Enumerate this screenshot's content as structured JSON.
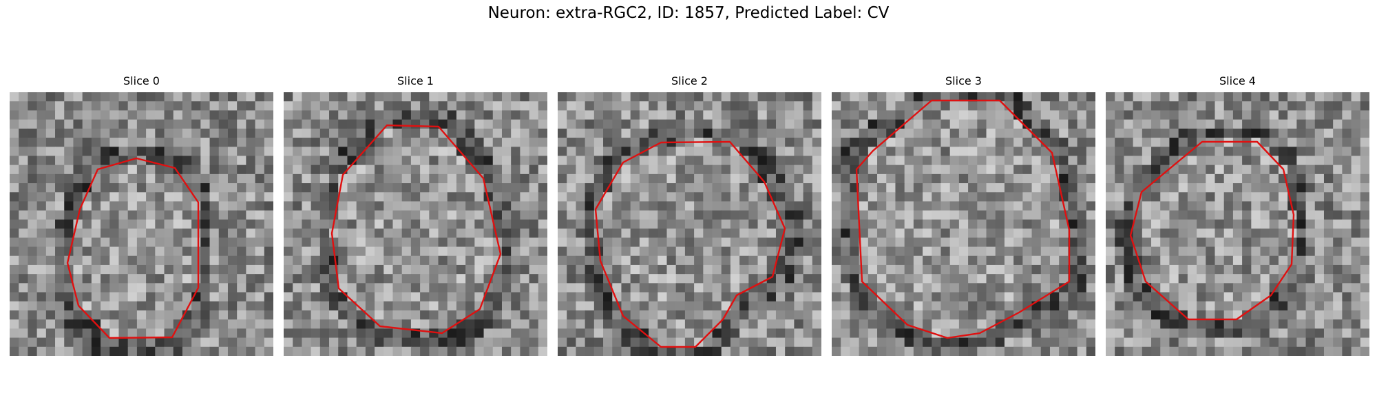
{
  "figure": {
    "title": "Neuron: extra-RGC2, ID: 1857, Predicted Label: CV"
  },
  "panels": [
    {
      "title": "Slice 0",
      "contour_color": "#e01010"
    },
    {
      "title": "Slice 1",
      "contour_color": "#e01010"
    },
    {
      "title": "Slice 2",
      "contour_color": "#e01010"
    },
    {
      "title": "Slice 3",
      "contour_color": "#e01010"
    },
    {
      "title": "Slice 4",
      "contour_color": "#e01010"
    }
  ]
}
